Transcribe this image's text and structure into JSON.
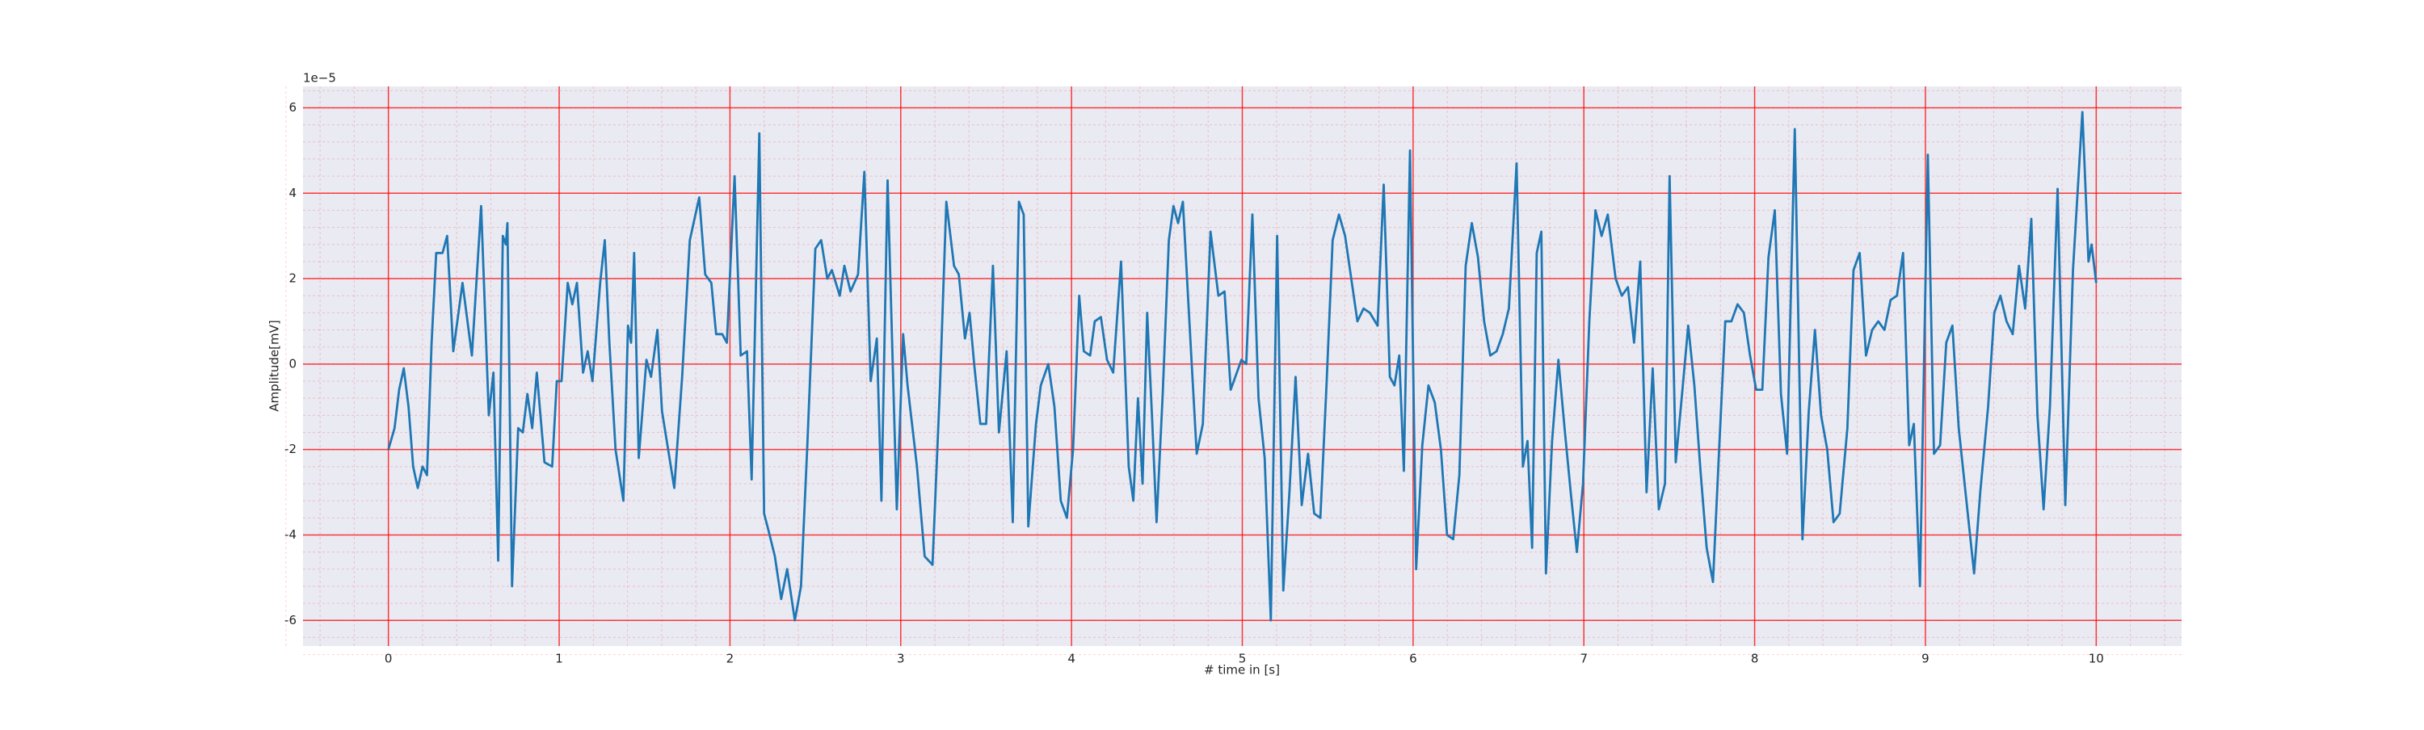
{
  "chart_data": {
    "type": "line",
    "x_label": "# time in [s]",
    "y_label": "Amplitude[mV]",
    "y_offset_label": "1e−5",
    "xlim": [
      -0.5,
      10.5
    ],
    "ylim": [
      -6.6,
      6.5
    ],
    "xticks": [
      0,
      1,
      2,
      3,
      4,
      5,
      6,
      7,
      8,
      9,
      10
    ],
    "yticks": [
      -6,
      -4,
      -2,
      0,
      2,
      4,
      6
    ],
    "grid": true,
    "minor_grid": true,
    "grid_color": "#ff0000",
    "background": "#eaeaf2",
    "series": [
      {
        "color": "#1f77b4",
        "x": [
          0,
          0.036,
          0.063,
          0.09,
          0.118,
          0.145,
          0.172,
          0.2,
          0.226,
          0.253,
          0.28,
          0.317,
          0.344,
          0.38,
          0.434,
          0.489,
          0.543,
          0.588,
          0.615,
          0.643,
          0.67,
          0.688,
          0.697,
          0.724,
          0.76,
          0.787,
          0.814,
          0.842,
          0.869,
          0.914,
          0.959,
          0.986,
          1.014,
          1.05,
          1.077,
          1.104,
          1.14,
          1.167,
          1.195,
          1.24,
          1.267,
          1.294,
          1.33,
          1.376,
          1.403,
          1.421,
          1.439,
          1.466,
          1.511,
          1.538,
          1.575,
          1.602,
          1.638,
          1.674,
          1.72,
          1.765,
          1.82,
          1.855,
          1.891,
          1.919,
          1.955,
          1.982,
          2.027,
          2.063,
          2.1,
          2.127,
          2.172,
          2.2,
          2.226,
          2.263,
          2.3,
          2.335,
          2.38,
          2.416,
          2.452,
          2.5,
          2.534,
          2.57,
          2.597,
          2.643,
          2.67,
          2.706,
          2.75,
          2.787,
          2.824,
          2.86,
          2.887,
          2.923,
          2.977,
          3.014,
          3.04,
          3.095,
          3.14,
          3.186,
          3.23,
          3.267,
          3.312,
          3.34,
          3.376,
          3.403,
          3.43,
          3.466,
          3.5,
          3.54,
          3.575,
          3.62,
          3.656,
          3.692,
          3.72,
          3.747,
          3.792,
          3.82,
          3.864,
          3.9,
          3.937,
          3.973,
          4.009,
          4.045,
          4.072,
          4.109,
          4.136,
          4.172,
          4.208,
          4.244,
          4.29,
          4.335,
          4.362,
          4.389,
          4.416,
          4.443,
          4.471,
          4.498,
          4.534,
          4.57,
          4.597,
          4.624,
          4.652,
          4.697,
          4.733,
          4.769,
          4.814,
          4.86,
          4.896,
          4.932,
          4.968,
          4.995,
          5.023,
          5.059,
          5.095,
          5.131,
          5.167,
          5.204,
          5.24,
          5.276,
          5.312,
          5.348,
          5.385,
          5.421,
          5.457,
          5.493,
          5.529,
          5.566,
          5.602,
          5.638,
          5.674,
          5.71,
          5.747,
          5.792,
          5.828,
          5.864,
          5.891,
          5.919,
          5.946,
          5.982,
          6.018,
          6.054,
          6.09,
          6.127,
          6.163,
          6.199,
          6.235,
          6.271,
          6.308,
          6.344,
          6.38,
          6.416,
          6.452,
          6.489,
          6.525,
          6.561,
          6.606,
          6.643,
          6.67,
          6.697,
          6.724,
          6.751,
          6.778,
          6.814,
          6.851,
          6.887,
          6.923,
          6.959,
          6.995,
          7.032,
          7.068,
          7.104,
          7.14,
          7.186,
          7.222,
          7.258,
          7.294,
          7.33,
          7.367,
          7.403,
          7.439,
          7.475,
          7.502,
          7.538,
          7.575,
          7.611,
          7.647,
          7.683,
          7.719,
          7.756,
          7.792,
          7.828,
          7.864,
          7.9,
          7.937,
          7.973,
          8.009,
          8.045,
          8.081,
          8.118,
          8.154,
          8.19,
          8.235,
          8.28,
          8.317,
          8.353,
          8.389,
          8.425,
          8.462,
          8.498,
          8.543,
          8.579,
          8.615,
          8.652,
          8.688,
          8.724,
          8.76,
          8.796,
          8.833,
          8.869,
          8.905,
          8.932,
          8.968,
          9.014,
          9.05,
          9.086,
          9.122,
          9.158,
          9.195,
          9.24,
          9.285,
          9.321,
          9.367,
          9.403,
          9.439,
          9.475,
          9.511,
          9.548,
          9.584,
          9.62,
          9.656,
          9.692,
          9.729,
          9.774,
          9.819,
          9.864,
          9.919,
          9.955,
          9.973,
          10.0
        ],
        "values": [
          -2.0,
          -1.5,
          -0.6,
          -0.1,
          -1.0,
          -2.4,
          -2.9,
          -2.4,
          -2.6,
          0.5,
          2.6,
          2.6,
          3.0,
          0.3,
          1.9,
          0.2,
          3.7,
          -1.2,
          -0.2,
          -4.6,
          3.0,
          2.8,
          3.3,
          -5.2,
          -1.5,
          -1.6,
          -0.7,
          -1.5,
          -0.2,
          -2.3,
          -2.4,
          -0.4,
          -0.4,
          1.9,
          1.4,
          1.9,
          -0.2,
          0.3,
          -0.4,
          1.9,
          2.9,
          0.5,
          -2.0,
          -3.2,
          0.9,
          0.5,
          2.6,
          -2.2,
          0.1,
          -0.3,
          0.8,
          -1.1,
          -2.0,
          -2.9,
          -0.3,
          2.9,
          3.9,
          2.1,
          1.9,
          0.7,
          0.7,
          0.5,
          4.4,
          0.2,
          0.3,
          -2.7,
          5.4,
          -3.5,
          -3.9,
          -4.5,
          -5.5,
          -4.8,
          -6.0,
          -5.2,
          -2.0,
          2.7,
          2.9,
          2.0,
          2.2,
          1.6,
          2.3,
          1.7,
          2.1,
          4.5,
          -0.4,
          0.6,
          -3.2,
          4.3,
          -3.4,
          0.7,
          -0.5,
          -2.4,
          -4.5,
          -4.7,
          -0.5,
          3.8,
          2.3,
          2.1,
          0.6,
          1.2,
          0.0,
          -1.4,
          -1.4,
          2.3,
          -1.6,
          0.3,
          -3.7,
          3.8,
          3.5,
          -3.8,
          -1.4,
          -0.5,
          0.0,
          -1.0,
          -3.2,
          -3.6,
          -2.0,
          1.6,
          0.3,
          0.2,
          1.0,
          1.1,
          0.1,
          -0.2,
          2.4,
          -2.4,
          -3.2,
          -0.8,
          -2.8,
          1.2,
          -1.2,
          -3.7,
          -0.7,
          2.9,
          3.7,
          3.3,
          3.8,
          0.5,
          -2.1,
          -1.4,
          3.1,
          1.6,
          1.7,
          -0.6,
          -0.2,
          0.1,
          0.0,
          3.5,
          -0.8,
          -2.2,
          -6.0,
          3.0,
          -5.3,
          -3.0,
          -0.3,
          -3.3,
          -2.1,
          -3.5,
          -3.6,
          -0.5,
          2.9,
          3.5,
          3.0,
          2.0,
          1.0,
          1.3,
          1.2,
          0.9,
          4.2,
          -0.3,
          -0.5,
          0.2,
          -2.5,
          5.0,
          -4.8,
          -1.9,
          -0.5,
          -0.9,
          -2.0,
          -4.0,
          -4.1,
          -2.6,
          2.3,
          3.3,
          2.5,
          1.0,
          0.2,
          0.3,
          0.7,
          1.3,
          4.7,
          -2.4,
          -1.8,
          -4.3,
          2.6,
          3.1,
          -4.9,
          -1.8,
          0.1,
          -1.5,
          -3.0,
          -4.4,
          -2.8,
          1.0,
          3.6,
          3.0,
          3.5,
          2.0,
          1.6,
          1.8,
          0.5,
          2.4,
          -3.0,
          -0.1,
          -3.4,
          -2.8,
          4.4,
          -2.3,
          -0.7,
          0.9,
          -0.5,
          -2.5,
          -4.3,
          -5.1,
          -2.0,
          1.0,
          1.0,
          1.4,
          1.2,
          0.2,
          -0.6,
          -0.6,
          2.5,
          3.6,
          -0.7,
          -2.1,
          5.5,
          -4.1,
          -1.1,
          0.8,
          -1.2,
          -2.0,
          -3.7,
          -3.5,
          -1.5,
          2.2,
          2.6,
          0.2,
          0.8,
          1.0,
          0.8,
          1.5,
          1.6,
          2.6,
          -1.9,
          -1.4,
          -5.2,
          4.9,
          -2.1,
          -1.9,
          0.5,
          0.9,
          -1.5,
          -3.2,
          -4.9,
          -3.0,
          -1.0,
          1.2,
          1.6,
          1.0,
          0.7,
          2.3,
          1.3,
          3.4,
          -1.2,
          -3.4,
          -1.0,
          4.1,
          -3.3,
          2.2,
          5.9,
          2.4,
          2.8,
          1.9
        ]
      }
    ]
  }
}
